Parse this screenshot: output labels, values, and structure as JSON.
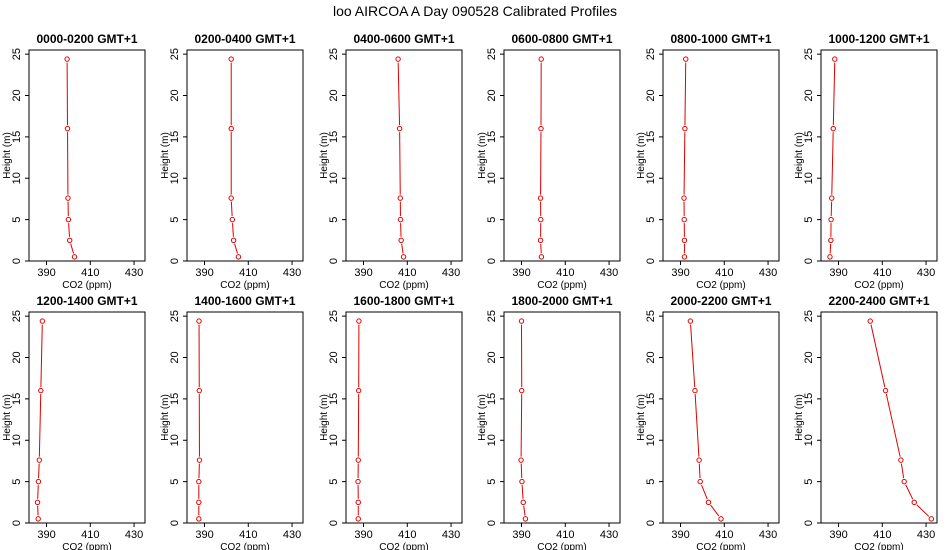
{
  "figure_title": "loo AIRCOA A  Day 090528  Calibrated Profiles",
  "series_color": "#e00000",
  "chart_data": [
    {
      "type": "line",
      "title": "0000-0200 GMT+1",
      "xlabel": "CO2 (ppm)",
      "ylabel": "Height (m)",
      "xlim": [
        382,
        435
      ],
      "ylim": [
        0,
        25.5
      ],
      "xticks": [
        390,
        410,
        430
      ],
      "yticks": [
        0,
        5,
        10,
        15,
        20,
        25
      ],
      "x": [
        399.4,
        399.6,
        399.8,
        400.0,
        400.6,
        402.8
      ],
      "y": [
        24.4,
        16.0,
        7.6,
        5.0,
        2.5,
        0.5
      ]
    },
    {
      "type": "line",
      "title": "0200-0400 GMT+1",
      "xlabel": "CO2 (ppm)",
      "ylabel": "Height (m)",
      "xlim": [
        382,
        435
      ],
      "ylim": [
        0,
        25.5
      ],
      "xticks": [
        390,
        410,
        430
      ],
      "yticks": [
        0,
        5,
        10,
        15,
        20,
        25
      ],
      "x": [
        402.2,
        402.2,
        402.2,
        402.7,
        403.3,
        405.5
      ],
      "y": [
        24.4,
        16.0,
        7.6,
        5.0,
        2.5,
        0.5
      ]
    },
    {
      "type": "line",
      "title": "0400-0600 GMT+1",
      "xlabel": "CO2 (ppm)",
      "ylabel": "Height (m)",
      "xlim": [
        382,
        435
      ],
      "ylim": [
        0,
        25.5
      ],
      "xticks": [
        390,
        410,
        430
      ],
      "yticks": [
        0,
        5,
        10,
        15,
        20,
        25
      ],
      "x": [
        405.8,
        406.5,
        406.8,
        406.9,
        407.2,
        408.3
      ],
      "y": [
        24.4,
        16.0,
        7.6,
        5.0,
        2.5,
        0.5
      ]
    },
    {
      "type": "line",
      "title": "0600-0800 GMT+1",
      "xlabel": "CO2 (ppm)",
      "ylabel": "Height (m)",
      "xlim": [
        382,
        435
      ],
      "ylim": [
        0,
        25.5
      ],
      "xticks": [
        390,
        410,
        430
      ],
      "yticks": [
        0,
        5,
        10,
        15,
        20,
        25
      ],
      "x": [
        399.0,
        398.9,
        398.7,
        398.8,
        398.7,
        399.1
      ],
      "y": [
        24.4,
        16.0,
        7.6,
        5.0,
        2.5,
        0.5
      ]
    },
    {
      "type": "line",
      "title": "0800-1000 GMT+1",
      "xlabel": "CO2 (ppm)",
      "ylabel": "Height (m)",
      "xlim": [
        382,
        435
      ],
      "ylim": [
        0,
        25.5
      ],
      "xticks": [
        390,
        410,
        430
      ],
      "yticks": [
        0,
        5,
        10,
        15,
        20,
        25
      ],
      "x": [
        392.4,
        392.0,
        391.6,
        391.7,
        391.8,
        391.8
      ],
      "y": [
        24.4,
        16.0,
        7.6,
        5.0,
        2.5,
        0.5
      ]
    },
    {
      "type": "line",
      "title": "1000-1200 GMT+1",
      "xlabel": "CO2 (ppm)",
      "ylabel": "Height (m)",
      "xlim": [
        382,
        435
      ],
      "ylim": [
        0,
        25.5
      ],
      "xticks": [
        390,
        410,
        430
      ],
      "yticks": [
        0,
        5,
        10,
        15,
        20,
        25
      ],
      "x": [
        388.3,
        387.6,
        386.9,
        386.6,
        386.5,
        386.1
      ],
      "y": [
        24.4,
        16.0,
        7.6,
        5.0,
        2.5,
        0.5
      ]
    },
    {
      "type": "line",
      "title": "1200-1400 GMT+1",
      "xlabel": "CO2 (ppm)",
      "ylabel": "Height (m)",
      "xlim": [
        382,
        435
      ],
      "ylim": [
        0,
        25.5
      ],
      "xticks": [
        390,
        410,
        430
      ],
      "yticks": [
        0,
        5,
        10,
        15,
        20,
        25
      ],
      "x": [
        388.1,
        387.4,
        386.7,
        386.3,
        385.9,
        386.2
      ],
      "y": [
        24.4,
        16.0,
        7.6,
        5.0,
        2.5,
        0.5
      ]
    },
    {
      "type": "line",
      "title": "1400-1600 GMT+1",
      "xlabel": "CO2 (ppm)",
      "ylabel": "Height (m)",
      "xlim": [
        382,
        435
      ],
      "ylim": [
        0,
        25.5
      ],
      "xticks": [
        390,
        410,
        430
      ],
      "yticks": [
        0,
        5,
        10,
        15,
        20,
        25
      ],
      "x": [
        387.5,
        387.6,
        387.7,
        387.4,
        387.4,
        387.4
      ],
      "y": [
        24.4,
        16.0,
        7.6,
        5.0,
        2.5,
        0.5
      ]
    },
    {
      "type": "line",
      "title": "1600-1800 GMT+1",
      "xlabel": "CO2 (ppm)",
      "ylabel": "Height (m)",
      "xlim": [
        382,
        435
      ],
      "ylim": [
        0,
        25.5
      ],
      "xticks": [
        390,
        410,
        430
      ],
      "yticks": [
        0,
        5,
        10,
        15,
        20,
        25
      ],
      "x": [
        387.9,
        387.8,
        387.6,
        387.5,
        387.6,
        387.6
      ],
      "y": [
        24.4,
        16.0,
        7.6,
        5.0,
        2.5,
        0.5
      ]
    },
    {
      "type": "line",
      "title": "1800-2000 GMT+1",
      "xlabel": "CO2 (ppm)",
      "ylabel": "Height (m)",
      "xlim": [
        382,
        435
      ],
      "ylim": [
        0,
        25.5
      ],
      "xticks": [
        390,
        410,
        430
      ],
      "yticks": [
        0,
        5,
        10,
        15,
        20,
        25
      ],
      "x": [
        390.0,
        390.1,
        389.8,
        390.2,
        390.8,
        391.8
      ],
      "y": [
        24.4,
        16.0,
        7.6,
        5.0,
        2.5,
        0.5
      ]
    },
    {
      "type": "line",
      "title": "2000-2200 GMT+1",
      "xlabel": "CO2 (ppm)",
      "ylabel": "Height (m)",
      "xlim": [
        382,
        435
      ],
      "ylim": [
        0,
        25.5
      ],
      "xticks": [
        390,
        410,
        430
      ],
      "yticks": [
        0,
        5,
        10,
        15,
        20,
        25
      ],
      "x": [
        394.5,
        396.6,
        398.5,
        399.0,
        402.8,
        408.5
      ],
      "y": [
        24.4,
        16.0,
        7.6,
        5.0,
        2.5,
        0.5
      ]
    },
    {
      "type": "line",
      "title": "2200-2400 GMT+1",
      "xlabel": "CO2 (ppm)",
      "ylabel": "Height (m)",
      "xlim": [
        382,
        435
      ],
      "ylim": [
        0,
        25.5
      ],
      "xticks": [
        390,
        410,
        430
      ],
      "yticks": [
        0,
        5,
        10,
        15,
        20,
        25
      ],
      "x": [
        404.5,
        411.5,
        418.5,
        420.0,
        424.6,
        432.4
      ],
      "y": [
        24.4,
        16.0,
        7.6,
        5.0,
        2.5,
        0.5
      ]
    }
  ]
}
